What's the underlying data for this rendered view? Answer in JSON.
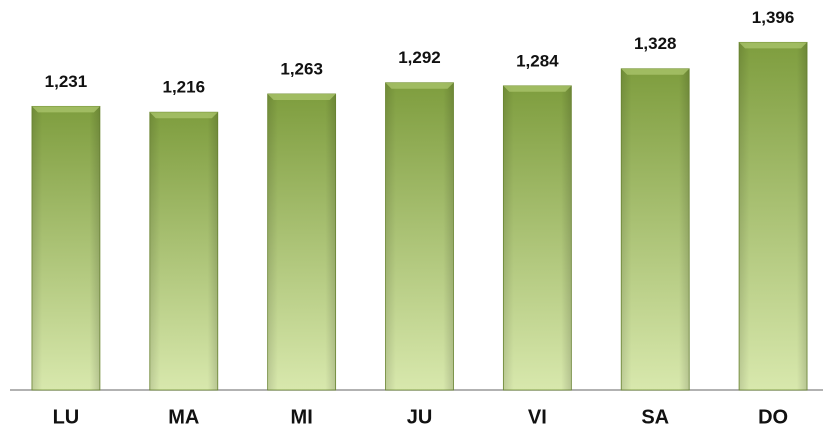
{
  "chart_data": {
    "type": "bar",
    "categories": [
      "LU",
      "MA",
      "MI",
      "JU",
      "VI",
      "SA",
      "DO"
    ],
    "values": [
      1231,
      1216,
      1263,
      1292,
      1284,
      1328,
      1396
    ],
    "value_labels": [
      "1,231",
      "1,216",
      "1,263",
      "1,292",
      "1,284",
      "1,328",
      "1,396"
    ],
    "color": "#7e9d3e",
    "ylim": [
      500,
      1500
    ]
  }
}
